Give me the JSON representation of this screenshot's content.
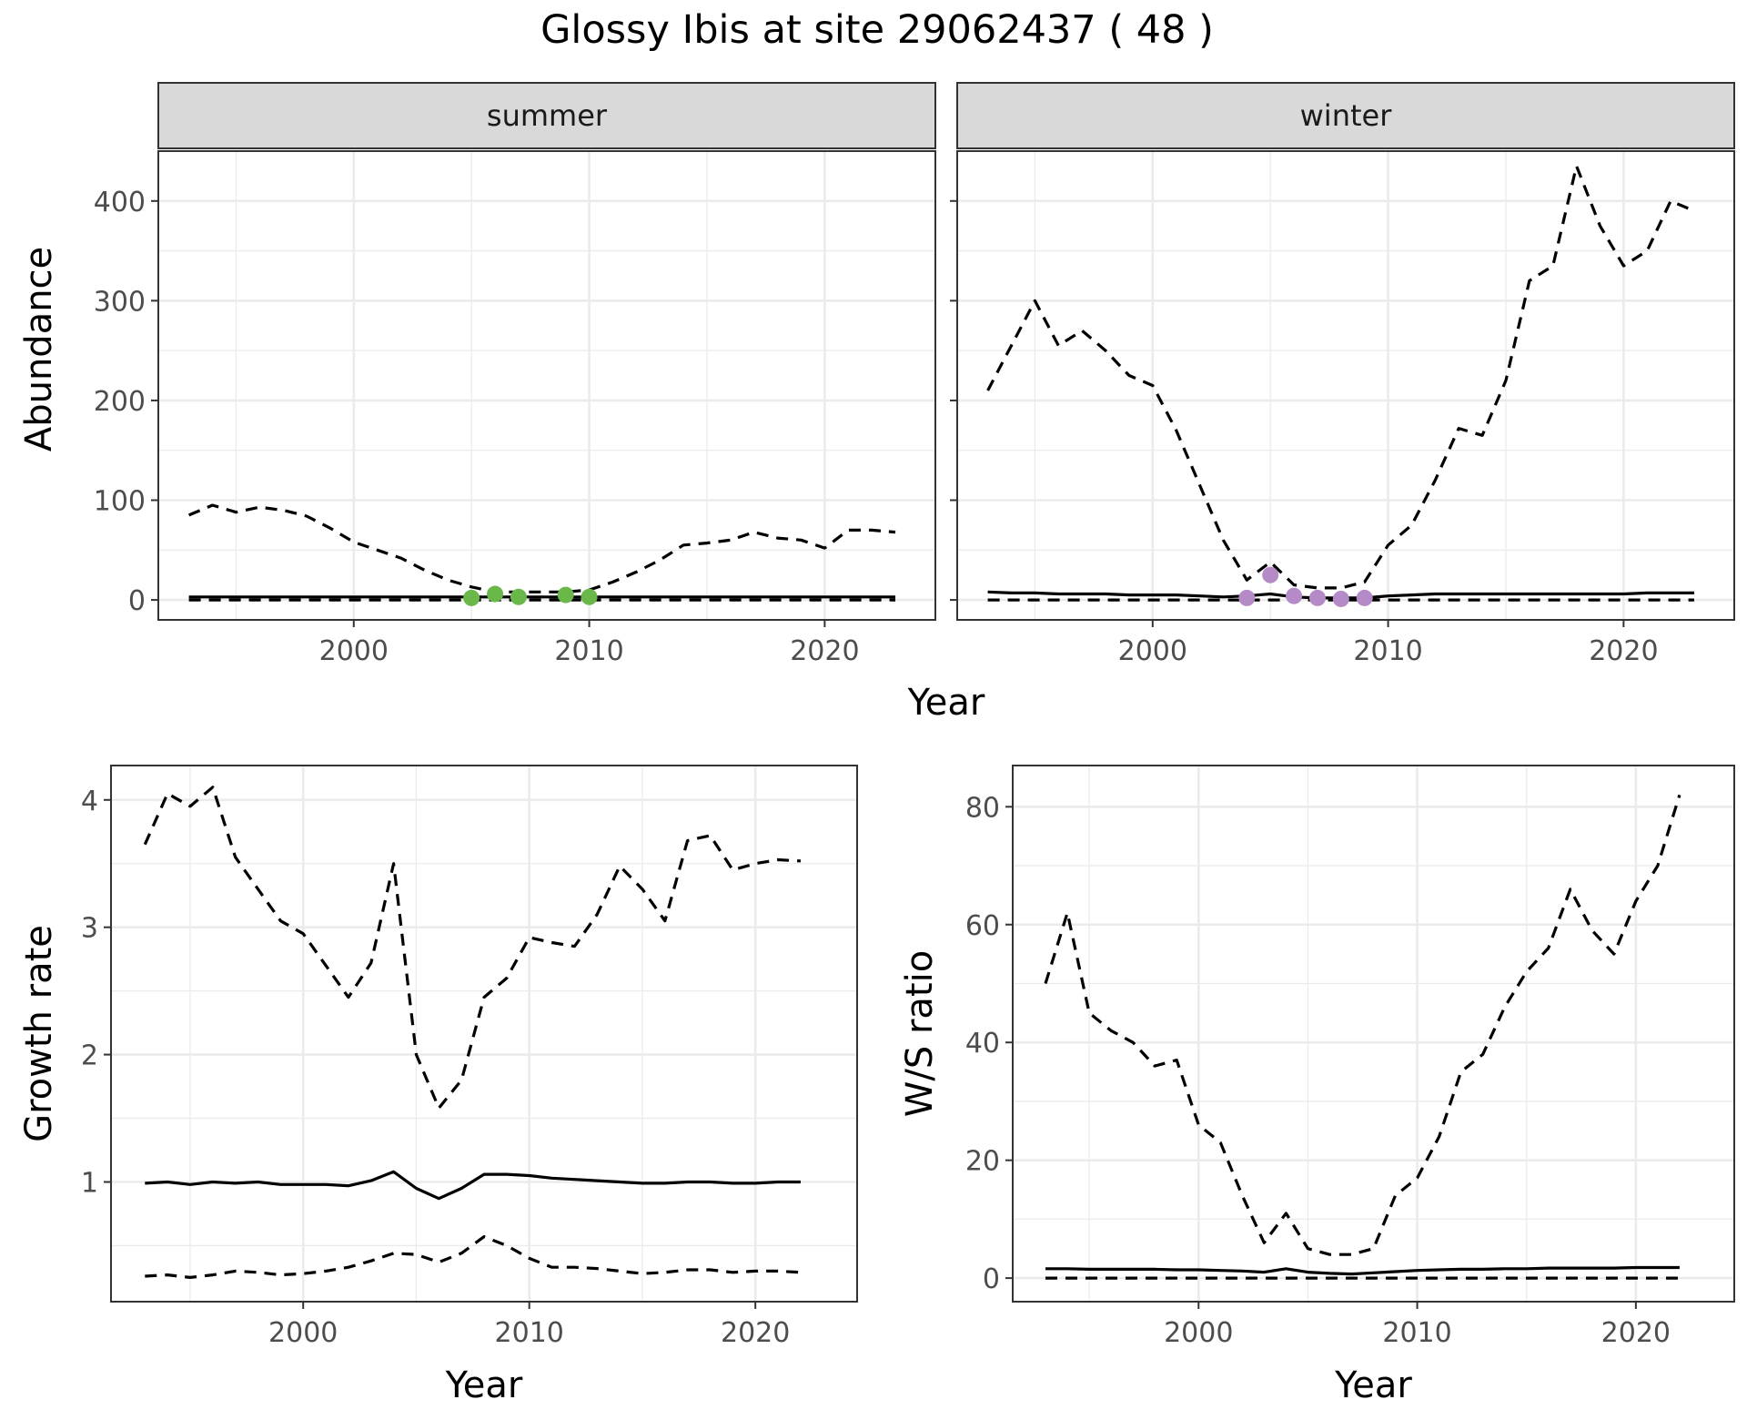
{
  "title": "Glossy Ibis at site 29062437 ( 48 )",
  "colors": {
    "summer_points": "#6ab74a",
    "winter_points": "#b48ac7",
    "lines": "#000000"
  },
  "chart_data": [
    {
      "id": "abundance",
      "type": "line",
      "facets": [
        "summer",
        "winter"
      ],
      "xlabel": "Year",
      "ylabel": "Abundance",
      "xlim": [
        1991.7,
        2024.7
      ],
      "ylim": [
        -20,
        450
      ],
      "xticks": [
        2000,
        2010,
        2020
      ],
      "yticks": [
        0,
        100,
        200,
        300,
        400
      ],
      "grid": true,
      "panels": [
        {
          "facet": "summer",
          "x": [
            1993,
            1994,
            1995,
            1996,
            1997,
            1998,
            1999,
            2000,
            2001,
            2002,
            2003,
            2004,
            2005,
            2006,
            2007,
            2008,
            2009,
            2010,
            2011,
            2012,
            2013,
            2014,
            2015,
            2016,
            2017,
            2018,
            2019,
            2020,
            2021,
            2022,
            2023
          ],
          "series": [
            {
              "style": "solid",
              "values": [
                3,
                3,
                3,
                3,
                3,
                3,
                3,
                3,
                3,
                3,
                3,
                3,
                3,
                3,
                3,
                3,
                3,
                3,
                3,
                3,
                3,
                3,
                3,
                3,
                3,
                3,
                3,
                3,
                3,
                3,
                3
              ]
            },
            {
              "style": "dashed",
              "values": [
                85,
                95,
                88,
                93,
                90,
                84,
                72,
                58,
                50,
                42,
                30,
                20,
                13,
                8,
                8,
                8,
                8,
                10,
                18,
                28,
                40,
                55,
                57,
                60,
                68,
                62,
                60,
                52,
                70,
                70,
                68
              ]
            },
            {
              "style": "dashed",
              "values": [
                0,
                0,
                0,
                0,
                0,
                0,
                0,
                0,
                0,
                0,
                0,
                0,
                0,
                0,
                0,
                0,
                0,
                0,
                0,
                0,
                0,
                0,
                0,
                0,
                0,
                0,
                0,
                0,
                0,
                0,
                0
              ]
            }
          ],
          "points": {
            "color": "#6ab74a",
            "x": [
              2005,
              2006,
              2007,
              2009,
              2010
            ],
            "y": [
              2,
              6,
              3,
              5,
              3
            ]
          }
        },
        {
          "facet": "winter",
          "x": [
            1993,
            1994,
            1995,
            1996,
            1997,
            1998,
            1999,
            2000,
            2001,
            2002,
            2003,
            2004,
            2005,
            2006,
            2007,
            2008,
            2009,
            2010,
            2011,
            2012,
            2013,
            2014,
            2015,
            2016,
            2017,
            2018,
            2019,
            2020,
            2021,
            2022,
            2023
          ],
          "series": [
            {
              "style": "solid",
              "values": [
                8,
                7,
                7,
                6,
                6,
                6,
                5,
                5,
                5,
                4,
                3,
                4,
                6,
                3,
                2,
                2,
                2,
                4,
                5,
                6,
                6,
                6,
                6,
                6,
                6,
                6,
                6,
                6,
                7,
                7,
                7
              ]
            },
            {
              "style": "dashed",
              "values": [
                210,
                255,
                300,
                255,
                270,
                250,
                225,
                215,
                170,
                115,
                60,
                20,
                38,
                15,
                12,
                12,
                18,
                55,
                75,
                120,
                172,
                165,
                220,
                320,
                335,
                435,
                375,
                335,
                350,
                400,
                390
              ]
            },
            {
              "style": "dashed",
              "values": [
                0,
                0,
                0,
                0,
                0,
                0,
                0,
                0,
                0,
                0,
                0,
                0,
                0,
                0,
                0,
                0,
                0,
                0,
                0,
                0,
                0,
                0,
                0,
                0,
                0,
                0,
                0,
                0,
                0,
                0,
                0
              ]
            }
          ],
          "points": {
            "color": "#b48ac7",
            "x": [
              2004,
              2005,
              2006,
              2007,
              2008,
              2009
            ],
            "y": [
              2,
              25,
              4,
              2,
              1,
              2
            ]
          }
        }
      ]
    },
    {
      "id": "growth",
      "type": "line",
      "xlabel": "Year",
      "ylabel": "Growth rate",
      "xlim": [
        1991.5,
        2024.5
      ],
      "ylim": [
        0.06,
        4.27
      ],
      "xticks": [
        2000,
        2010,
        2020
      ],
      "yticks": [
        1,
        2,
        3,
        4
      ],
      "grid": true,
      "x": [
        1993,
        1994,
        1995,
        1996,
        1997,
        1998,
        1999,
        2000,
        2001,
        2002,
        2003,
        2004,
        2005,
        2006,
        2007,
        2008,
        2009,
        2010,
        2011,
        2012,
        2013,
        2014,
        2015,
        2016,
        2017,
        2018,
        2019,
        2020,
        2021,
        2022
      ],
      "series": [
        {
          "style": "solid",
          "values": [
            0.99,
            1.0,
            0.98,
            1.0,
            0.99,
            1.0,
            0.98,
            0.98,
            0.98,
            0.97,
            1.01,
            1.08,
            0.95,
            0.87,
            0.95,
            1.06,
            1.06,
            1.05,
            1.03,
            1.02,
            1.01,
            1.0,
            0.99,
            0.99,
            1.0,
            1.0,
            0.99,
            0.99,
            1.0,
            1.0
          ]
        },
        {
          "style": "dashed",
          "values": [
            3.65,
            4.05,
            3.95,
            4.1,
            3.55,
            3.3,
            3.05,
            2.95,
            2.7,
            2.45,
            2.72,
            3.5,
            2.0,
            1.58,
            1.8,
            2.45,
            2.6,
            2.92,
            2.88,
            2.85,
            3.1,
            3.48,
            3.3,
            3.05,
            3.68,
            3.72,
            3.45,
            3.5,
            3.53,
            3.52
          ]
        },
        {
          "style": "dashed",
          "values": [
            0.26,
            0.27,
            0.25,
            0.27,
            0.3,
            0.29,
            0.27,
            0.28,
            0.3,
            0.33,
            0.38,
            0.44,
            0.43,
            0.37,
            0.44,
            0.57,
            0.5,
            0.4,
            0.33,
            0.33,
            0.32,
            0.3,
            0.28,
            0.29,
            0.31,
            0.31,
            0.29,
            0.3,
            0.3,
            0.29
          ]
        }
      ]
    },
    {
      "id": "ratio",
      "type": "line",
      "xlabel": "Year",
      "ylabel": "W/S ratio",
      "xlim": [
        1991.5,
        2024.5
      ],
      "ylim": [
        -4,
        87
      ],
      "xticks": [
        2000,
        2010,
        2020
      ],
      "yticks": [
        0,
        20,
        40,
        60,
        80
      ],
      "grid": true,
      "x": [
        1993,
        1994,
        1995,
        1996,
        1997,
        1998,
        1999,
        2000,
        2001,
        2002,
        2003,
        2004,
        2005,
        2006,
        2007,
        2008,
        2009,
        2010,
        2011,
        2012,
        2013,
        2014,
        2015,
        2016,
        2017,
        2018,
        2019,
        2020,
        2021,
        2022
      ],
      "series": [
        {
          "style": "solid",
          "values": [
            1.6,
            1.6,
            1.5,
            1.5,
            1.5,
            1.5,
            1.4,
            1.4,
            1.3,
            1.2,
            1.0,
            1.6,
            1.0,
            0.8,
            0.7,
            0.9,
            1.1,
            1.3,
            1.4,
            1.5,
            1.5,
            1.6,
            1.6,
            1.7,
            1.7,
            1.7,
            1.7,
            1.8,
            1.8,
            1.8
          ]
        },
        {
          "style": "dashed",
          "values": [
            50,
            62,
            45,
            42,
            40,
            36,
            37,
            26,
            23,
            14,
            6,
            11,
            5,
            4,
            4,
            5,
            14,
            17,
            24,
            35,
            38,
            46,
            52,
            56,
            66,
            59,
            55,
            64,
            70,
            82
          ]
        },
        {
          "style": "dashed",
          "values": [
            0,
            0,
            0,
            0,
            0,
            0,
            0,
            0,
            0,
            0,
            0,
            0,
            0,
            0,
            0,
            0,
            0,
            0,
            0,
            0,
            0,
            0,
            0,
            0,
            0,
            0,
            0,
            0,
            0,
            0
          ]
        }
      ]
    }
  ]
}
